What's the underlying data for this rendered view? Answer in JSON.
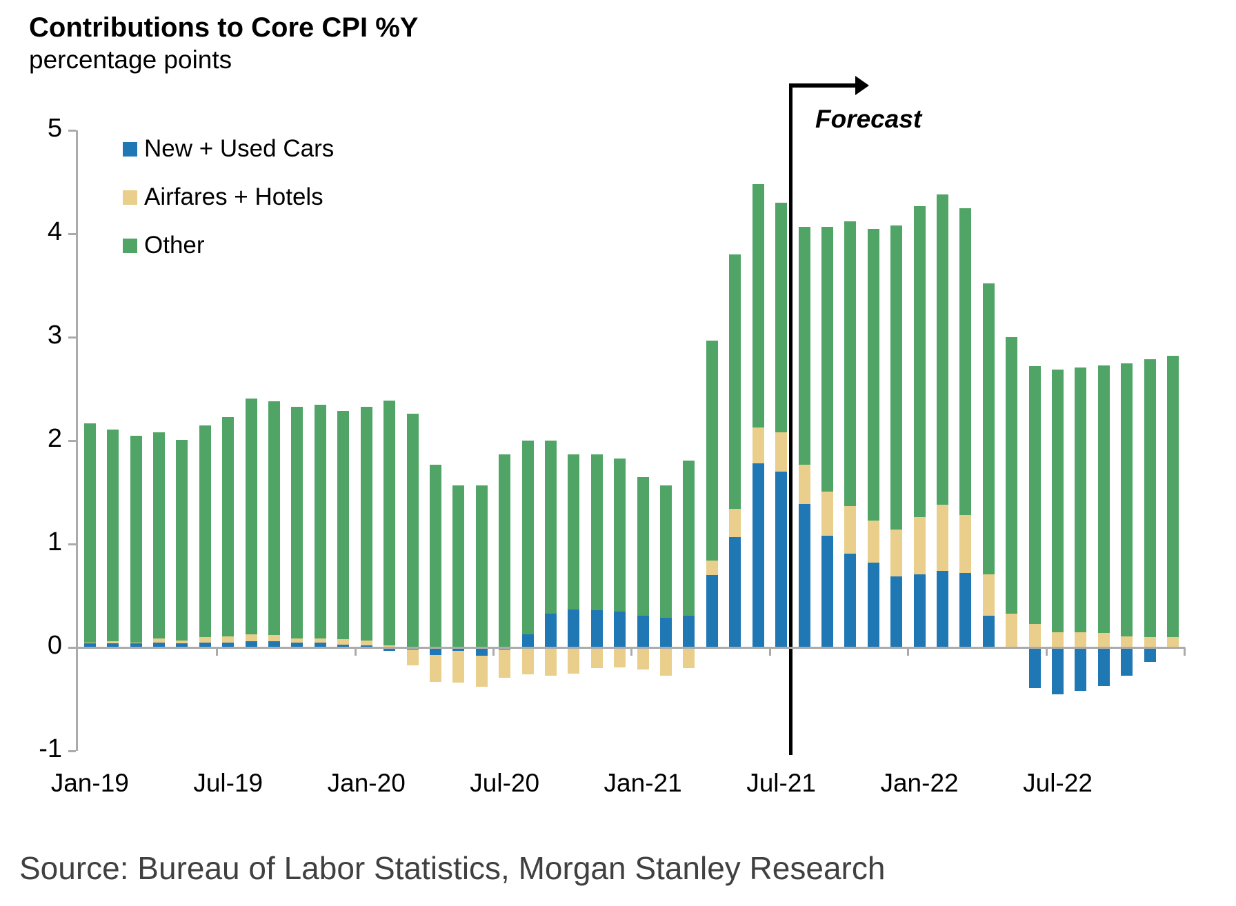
{
  "header": {
    "title": "Contributions to Core CPI %Y",
    "subtitle": "percentage points"
  },
  "forecast": {
    "label": "Forecast"
  },
  "source": {
    "text": "Source: Bureau of Labor Statistics, Morgan Stanley Research"
  },
  "colors": {
    "cars": "#1F77B4",
    "airfares_hotels": "#E9CF8B",
    "other": "#50A566",
    "axis": "#ababab",
    "forecast_line": "#000000",
    "source_text": "#404040"
  },
  "legend": [
    {
      "label": "New + Used Cars",
      "color": "#1F77B4"
    },
    {
      "label": "Airfares + Hotels",
      "color": "#E9CF8B"
    },
    {
      "label": "Other",
      "color": "#50A566"
    }
  ],
  "chart_data": {
    "type": "bar",
    "stacked": true,
    "title": "Contributions to Core CPI %Y",
    "ylabel": "percentage points",
    "xlabel": "",
    "ylim": [
      -1,
      5
    ],
    "grid": false,
    "legend_position": "upper-left",
    "forecast_from": "Aug-21",
    "y_ticks": [
      5,
      4,
      3,
      2,
      1,
      0,
      -1
    ],
    "x_tick_labels": [
      "Jan-19",
      "Jul-19",
      "Jan-20",
      "Jul-20",
      "Jan-21",
      "Jul-21",
      "Jan-22",
      "Jul-22"
    ],
    "categories": [
      "Jan-19",
      "Feb-19",
      "Mar-19",
      "Apr-19",
      "May-19",
      "Jun-19",
      "Jul-19",
      "Aug-19",
      "Sep-19",
      "Oct-19",
      "Nov-19",
      "Dec-19",
      "Jan-20",
      "Feb-20",
      "Mar-20",
      "Apr-20",
      "May-20",
      "Jun-20",
      "Jul-20",
      "Aug-20",
      "Sep-20",
      "Oct-20",
      "Nov-20",
      "Dec-20",
      "Jan-21",
      "Feb-21",
      "Mar-21",
      "Apr-21",
      "May-21",
      "Jun-21",
      "Jul-21",
      "Aug-21",
      "Sep-21",
      "Oct-21",
      "Nov-21",
      "Dec-21",
      "Jan-22",
      "Feb-22",
      "Mar-22",
      "Apr-22",
      "May-22",
      "Jun-22",
      "Jul-22",
      "Aug-22",
      "Sep-22",
      "Oct-22",
      "Nov-22",
      "Dec-22"
    ],
    "series": [
      {
        "name": "New + Used Cars",
        "color": "#1F77B4",
        "values": [
          0.04,
          0.04,
          0.04,
          0.05,
          0.04,
          0.05,
          0.05,
          0.06,
          0.06,
          0.05,
          0.05,
          0.03,
          0.02,
          -0.03,
          -0.02,
          -0.07,
          -0.03,
          -0.08,
          -0.02,
          0.13,
          0.33,
          0.37,
          0.36,
          0.35,
          0.31,
          0.29,
          0.31,
          0.7,
          1.07,
          1.78,
          1.7,
          1.39,
          1.08,
          0.91,
          0.82,
          0.69,
          0.71,
          0.74,
          0.72,
          0.31,
          0.0,
          -0.39,
          -0.45,
          -0.42,
          -0.37,
          -0.27,
          -0.14,
          0.0
        ]
      },
      {
        "name": "Airfares + Hotels",
        "color": "#E9CF8B",
        "values": [
          0.01,
          0.02,
          0.01,
          0.04,
          0.03,
          0.05,
          0.06,
          0.07,
          0.06,
          0.04,
          0.04,
          0.05,
          0.05,
          0.02,
          -0.15,
          -0.26,
          -0.31,
          -0.3,
          -0.27,
          -0.26,
          -0.27,
          -0.25,
          -0.2,
          -0.19,
          -0.21,
          -0.27,
          -0.2,
          0.14,
          0.27,
          0.35,
          0.38,
          0.38,
          0.43,
          0.46,
          0.41,
          0.45,
          0.55,
          0.64,
          0.56,
          0.4,
          0.33,
          0.23,
          0.15,
          0.15,
          0.14,
          0.11,
          0.1,
          0.1
        ]
      },
      {
        "name": "Other",
        "color": "#50A566",
        "values": [
          2.12,
          2.05,
          2.0,
          1.99,
          1.94,
          2.05,
          2.12,
          2.28,
          2.26,
          2.24,
          2.26,
          2.21,
          2.26,
          2.37,
          2.26,
          1.77,
          1.57,
          1.57,
          1.87,
          1.87,
          1.67,
          1.5,
          1.51,
          1.48,
          1.34,
          1.28,
          1.5,
          2.13,
          2.46,
          2.35,
          2.22,
          2.3,
          2.56,
          2.75,
          2.82,
          2.94,
          3.01,
          3.0,
          2.97,
          2.81,
          2.67,
          2.49,
          2.54,
          2.56,
          2.59,
          2.64,
          2.69,
          2.72
        ]
      }
    ]
  }
}
